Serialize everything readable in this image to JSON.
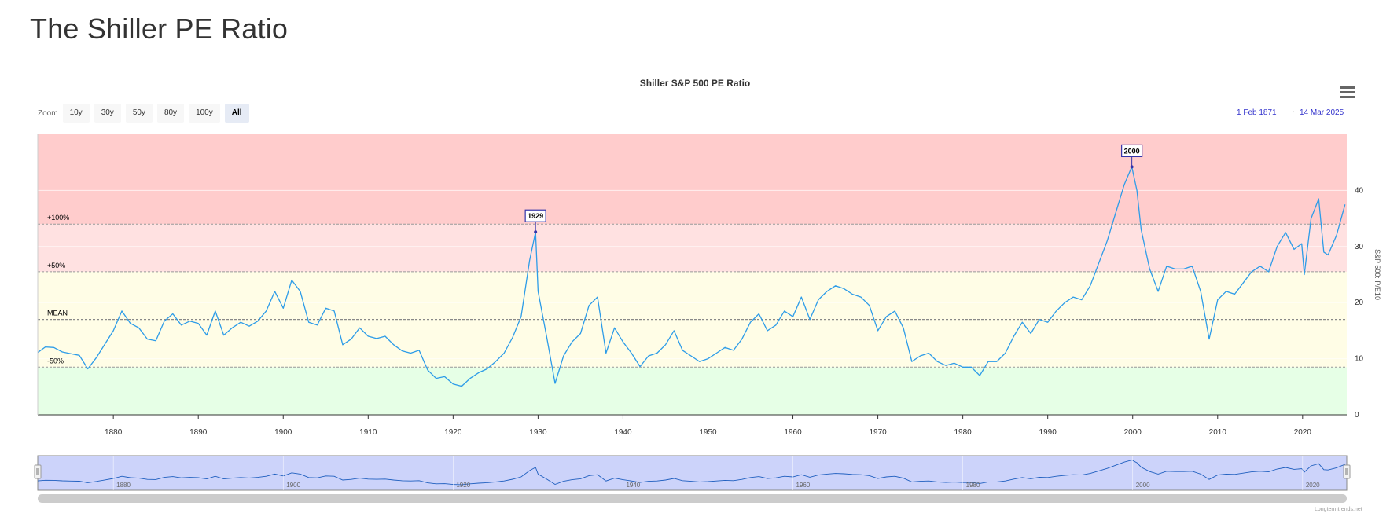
{
  "page": {
    "title": "The Shiller PE Ratio"
  },
  "chart_data": {
    "type": "line",
    "title": "Shiller S&P 500 PE Ratio",
    "ylabel": "S&P 500: P/E10",
    "xlim": [
      1871.1,
      2025.2
    ],
    "ylim": [
      0,
      50
    ],
    "x_ticks": [
      1880,
      1890,
      1900,
      1910,
      1920,
      1930,
      1940,
      1950,
      1960,
      1970,
      1980,
      1990,
      2000,
      2010,
      2020
    ],
    "y_ticks": [
      0,
      10,
      20,
      30,
      40
    ],
    "grid": "horizontal",
    "bands": [
      {
        "from": 0,
        "to": 8.5,
        "color": "#e6ffe6"
      },
      {
        "from": 8.5,
        "to": 25.5,
        "color": "#fffde6"
      },
      {
        "from": 25.5,
        "to": 34,
        "color": "#ffe1e1"
      },
      {
        "from": 34,
        "to": 50,
        "color": "#ffcccc"
      }
    ],
    "reference_lines": [
      {
        "label": "+100%",
        "value": 34
      },
      {
        "label": "+50%",
        "value": 25.5
      },
      {
        "label": "MEAN",
        "value": 17
      },
      {
        "label": "-50%",
        "value": 8.5
      }
    ],
    "flags": [
      {
        "label": "1929",
        "x": 1929.7,
        "y": 32.6
      },
      {
        "label": "2000",
        "x": 1999.9,
        "y": 44.2
      }
    ],
    "series": [
      {
        "color": "#2d9ce8",
        "points": [
          [
            1871.1,
            11.1
          ],
          [
            1872,
            12.1
          ],
          [
            1873,
            12.0
          ],
          [
            1874,
            11.2
          ],
          [
            1875,
            10.9
          ],
          [
            1876,
            10.6
          ],
          [
            1877,
            8.2
          ],
          [
            1878,
            10.2
          ],
          [
            1879,
            12.6
          ],
          [
            1880,
            15.0
          ],
          [
            1881,
            18.5
          ],
          [
            1882,
            16.3
          ],
          [
            1883,
            15.5
          ],
          [
            1884,
            13.5
          ],
          [
            1885,
            13.2
          ],
          [
            1886,
            16.7
          ],
          [
            1887,
            18.0
          ],
          [
            1888,
            16.0
          ],
          [
            1889,
            16.7
          ],
          [
            1890,
            16.3
          ],
          [
            1891,
            14.2
          ],
          [
            1892,
            18.5
          ],
          [
            1893,
            14.2
          ],
          [
            1894,
            15.5
          ],
          [
            1895,
            16.5
          ],
          [
            1896,
            15.8
          ],
          [
            1897,
            16.7
          ],
          [
            1898,
            18.5
          ],
          [
            1899,
            22.0
          ],
          [
            1900,
            19.0
          ],
          [
            1901,
            24.0
          ],
          [
            1902,
            22.0
          ],
          [
            1903,
            16.5
          ],
          [
            1904,
            16.0
          ],
          [
            1905,
            19.0
          ],
          [
            1906,
            18.5
          ],
          [
            1907,
            12.5
          ],
          [
            1908,
            13.5
          ],
          [
            1909,
            15.5
          ],
          [
            1910,
            14.0
          ],
          [
            1911,
            13.6
          ],
          [
            1912,
            14.0
          ],
          [
            1913,
            12.5
          ],
          [
            1914,
            11.4
          ],
          [
            1915,
            11.0
          ],
          [
            1916,
            11.5
          ],
          [
            1917,
            8.0
          ],
          [
            1918,
            6.5
          ],
          [
            1919,
            6.8
          ],
          [
            1920,
            5.5
          ],
          [
            1921,
            5.1
          ],
          [
            1922,
            6.5
          ],
          [
            1923,
            7.5
          ],
          [
            1924,
            8.2
          ],
          [
            1925,
            9.5
          ],
          [
            1926,
            11.0
          ],
          [
            1927,
            13.8
          ],
          [
            1928,
            17.5
          ],
          [
            1929,
            27.5
          ],
          [
            1929.7,
            32.6
          ],
          [
            1930,
            22.0
          ],
          [
            1931,
            14.0
          ],
          [
            1932,
            5.6
          ],
          [
            1933,
            10.5
          ],
          [
            1934,
            13.0
          ],
          [
            1935,
            14.5
          ],
          [
            1936,
            19.5
          ],
          [
            1937,
            21.0
          ],
          [
            1938,
            11.0
          ],
          [
            1939,
            15.5
          ],
          [
            1940,
            13.0
          ],
          [
            1941,
            11.0
          ],
          [
            1942,
            8.6
          ],
          [
            1943,
            10.5
          ],
          [
            1944,
            11.0
          ],
          [
            1945,
            12.5
          ],
          [
            1946,
            15.0
          ],
          [
            1947,
            11.5
          ],
          [
            1948,
            10.5
          ],
          [
            1949,
            9.5
          ],
          [
            1950,
            10.0
          ],
          [
            1951,
            11.0
          ],
          [
            1952,
            12.0
          ],
          [
            1953,
            11.5
          ],
          [
            1954,
            13.5
          ],
          [
            1955,
            16.5
          ],
          [
            1956,
            18.0
          ],
          [
            1957,
            15.0
          ],
          [
            1958,
            16.0
          ],
          [
            1959,
            18.5
          ],
          [
            1960,
            17.5
          ],
          [
            1961,
            21.0
          ],
          [
            1962,
            17.0
          ],
          [
            1963,
            20.5
          ],
          [
            1964,
            22.0
          ],
          [
            1965,
            23.0
          ],
          [
            1966,
            22.5
          ],
          [
            1967,
            21.5
          ],
          [
            1968,
            21.0
          ],
          [
            1969,
            19.5
          ],
          [
            1970,
            15.0
          ],
          [
            1971,
            17.5
          ],
          [
            1972,
            18.5
          ],
          [
            1973,
            15.5
          ],
          [
            1974,
            9.5
          ],
          [
            1975,
            10.5
          ],
          [
            1976,
            11.0
          ],
          [
            1977,
            9.5
          ],
          [
            1978,
            8.8
          ],
          [
            1979,
            9.2
          ],
          [
            1980,
            8.5
          ],
          [
            1981,
            8.5
          ],
          [
            1982,
            7.0
          ],
          [
            1983,
            9.5
          ],
          [
            1984,
            9.5
          ],
          [
            1985,
            11.0
          ],
          [
            1986,
            14.0
          ],
          [
            1987,
            16.5
          ],
          [
            1988,
            14.5
          ],
          [
            1989,
            17.0
          ],
          [
            1990,
            16.5
          ],
          [
            1991,
            18.5
          ],
          [
            1992,
            20.0
          ],
          [
            1993,
            21.0
          ],
          [
            1994,
            20.5
          ],
          [
            1995,
            23.0
          ],
          [
            1996,
            27.0
          ],
          [
            1997,
            31.0
          ],
          [
            1998,
            36.0
          ],
          [
            1999,
            41.0
          ],
          [
            1999.9,
            44.2
          ],
          [
            2000.5,
            40.0
          ],
          [
            2001,
            33.0
          ],
          [
            2002,
            26.0
          ],
          [
            2003,
            22.0
          ],
          [
            2004,
            26.5
          ],
          [
            2005,
            26.0
          ],
          [
            2006,
            26.0
          ],
          [
            2007,
            26.5
          ],
          [
            2008,
            22.0
          ],
          [
            2009,
            13.5
          ],
          [
            2010,
            20.5
          ],
          [
            2011,
            22.0
          ],
          [
            2012,
            21.5
          ],
          [
            2013,
            23.5
          ],
          [
            2014,
            25.5
          ],
          [
            2015,
            26.5
          ],
          [
            2016,
            25.5
          ],
          [
            2017,
            30.0
          ],
          [
            2018,
            32.5
          ],
          [
            2019,
            29.5
          ],
          [
            2019.9,
            30.5
          ],
          [
            2020.2,
            25.0
          ],
          [
            2021,
            35.0
          ],
          [
            2021.9,
            38.5
          ],
          [
            2022.5,
            29.0
          ],
          [
            2023,
            28.5
          ],
          [
            2024,
            32.0
          ],
          [
            2025,
            37.5
          ]
        ]
      }
    ],
    "navigator": {
      "ticks": [
        1880,
        1900,
        1920,
        1940,
        1960,
        1980,
        2000,
        2020
      ]
    }
  },
  "zoom": {
    "label": "Zoom",
    "buttons": [
      "10y",
      "30y",
      "50y",
      "80y",
      "100y",
      "All"
    ],
    "selected": "All"
  },
  "range": {
    "from": "1 Feb 1871",
    "to": "14 Mar 2025",
    "separator": "→"
  },
  "credits": "Longtermtrends.net"
}
